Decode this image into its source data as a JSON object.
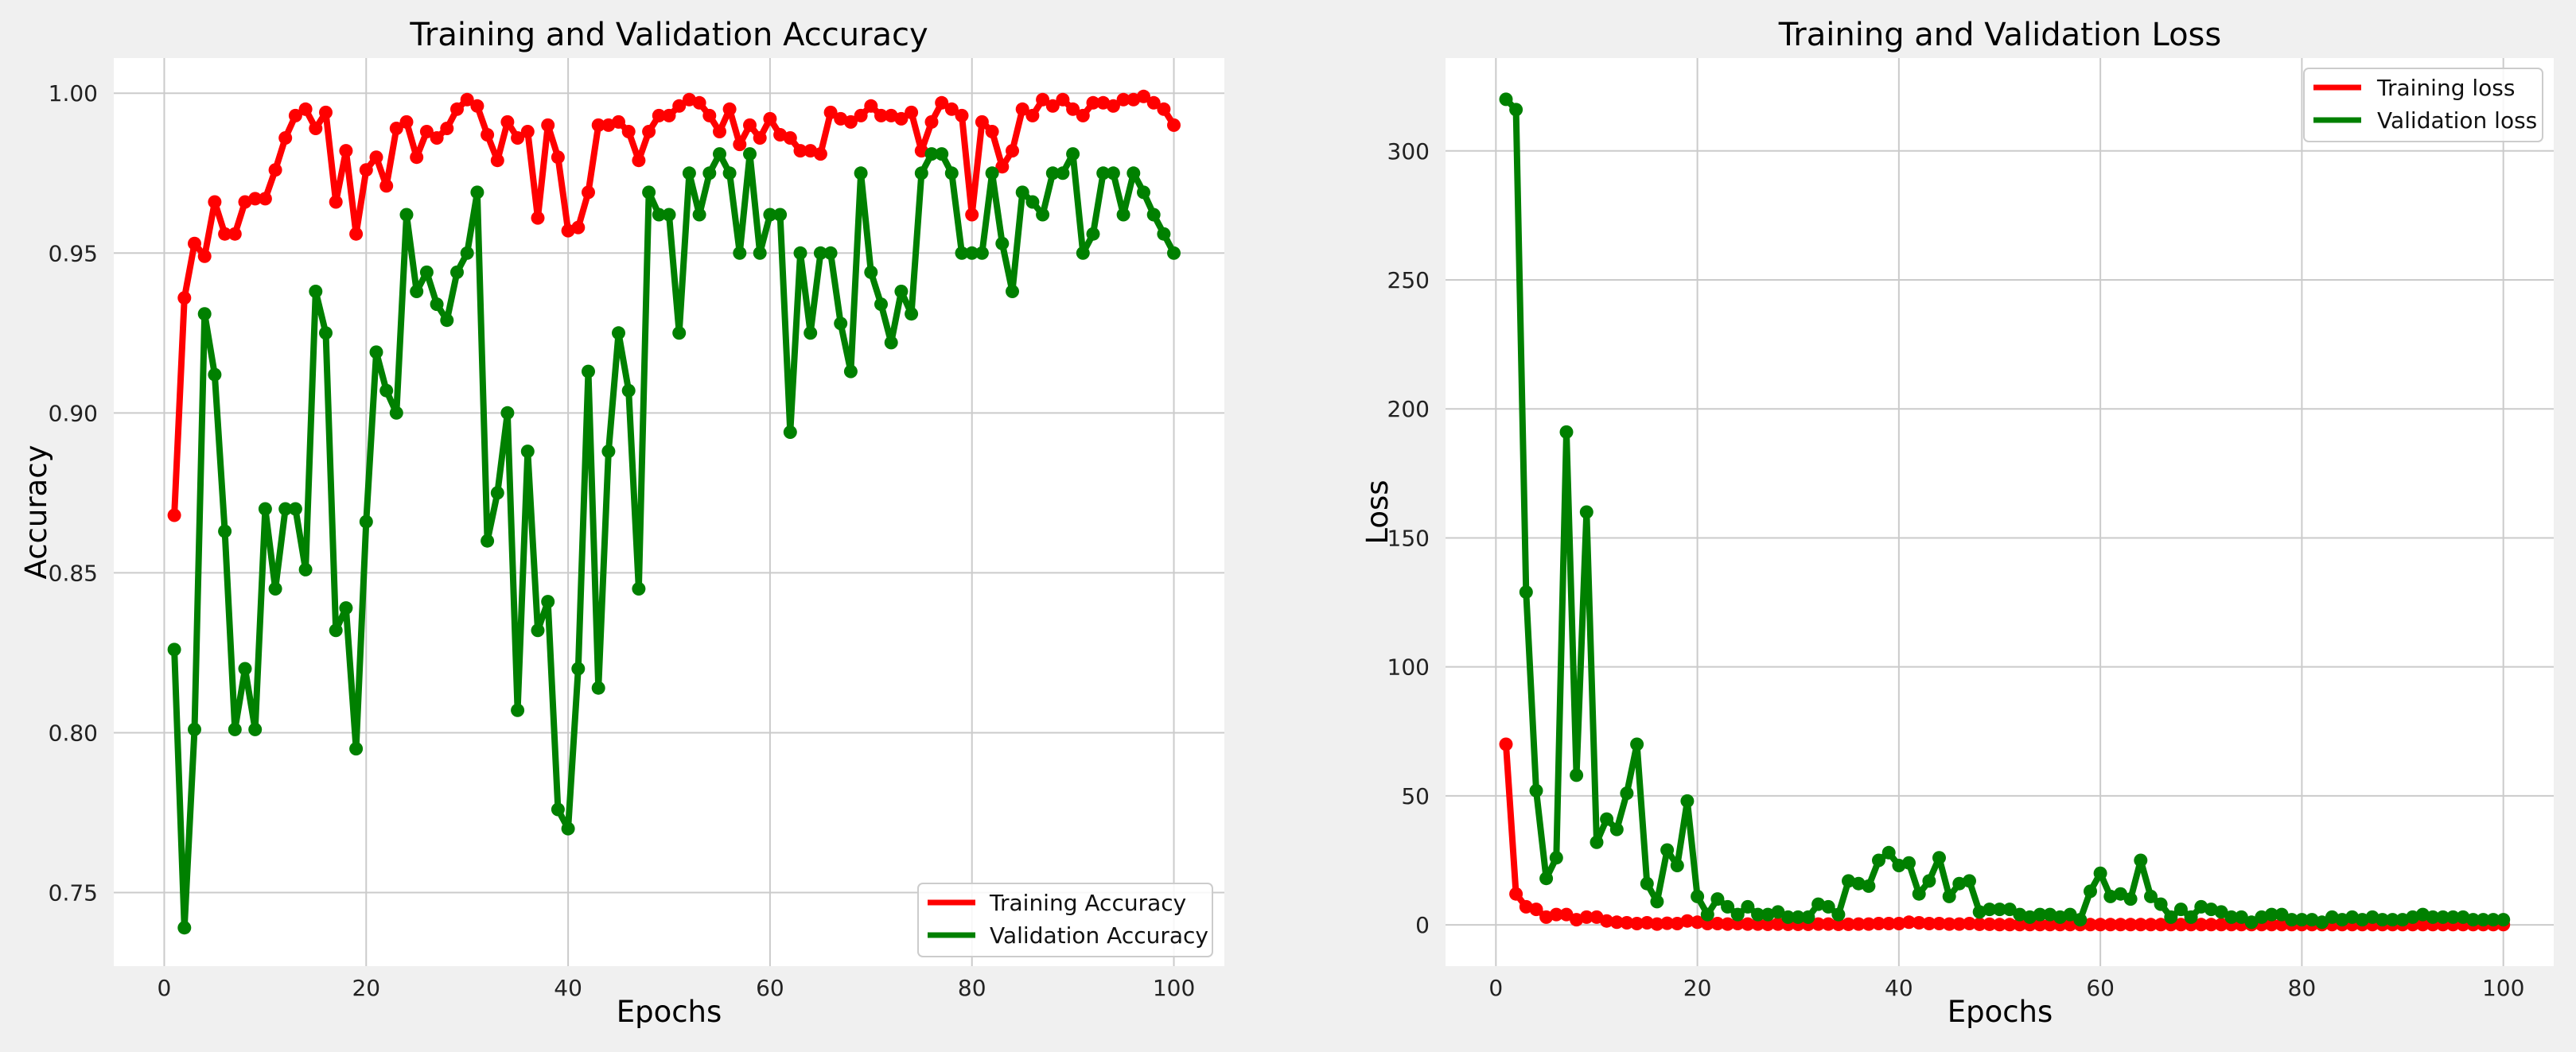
{
  "chart_data": [
    {
      "type": "line",
      "title": "Training and Validation Accuracy",
      "xlabel": "Epochs",
      "ylabel": "Accuracy",
      "xlim": [
        -5,
        105
      ],
      "ylim": [
        0.727,
        1.011
      ],
      "xticks": [
        0,
        20,
        40,
        60,
        80,
        100
      ],
      "yticks": [
        0.75,
        0.8,
        0.85,
        0.9,
        0.95,
        1.0
      ],
      "yticks_labels": [
        "0.75",
        "0.80",
        "0.85",
        "0.90",
        "0.95",
        "1.00"
      ],
      "xticks_labels": [
        "0",
        "20",
        "40",
        "60",
        "80",
        "100"
      ],
      "grid": true,
      "legend_position": "lower-right",
      "x": [
        1,
        2,
        3,
        4,
        5,
        6,
        7,
        8,
        9,
        10,
        11,
        12,
        13,
        14,
        15,
        16,
        17,
        18,
        19,
        20,
        21,
        22,
        23,
        24,
        25,
        26,
        27,
        28,
        29,
        30,
        31,
        32,
        33,
        34,
        35,
        36,
        37,
        38,
        39,
        40,
        41,
        42,
        43,
        44,
        45,
        46,
        47,
        48,
        49,
        50,
        51,
        52,
        53,
        54,
        55,
        56,
        57,
        58,
        59,
        60,
        61,
        62,
        63,
        64,
        65,
        66,
        67,
        68,
        69,
        70,
        71,
        72,
        73,
        74,
        75,
        76,
        77,
        78,
        79,
        80,
        81,
        82,
        83,
        84,
        85,
        86,
        87,
        88,
        89,
        90,
        91,
        92,
        93,
        94,
        95,
        96,
        97,
        98,
        99,
        100
      ],
      "series": [
        {
          "name": "Training Accuracy",
          "color": "#ff0000",
          "values": [
            0.868,
            0.936,
            0.953,
            0.949,
            0.966,
            0.956,
            0.956,
            0.966,
            0.967,
            0.967,
            0.976,
            0.986,
            0.993,
            0.995,
            0.989,
            0.994,
            0.966,
            0.982,
            0.956,
            0.976,
            0.98,
            0.971,
            0.989,
            0.991,
            0.98,
            0.988,
            0.986,
            0.989,
            0.995,
            0.998,
            0.996,
            0.987,
            0.979,
            0.991,
            0.986,
            0.988,
            0.961,
            0.99,
            0.98,
            0.957,
            0.958,
            0.969,
            0.99,
            0.99,
            0.991,
            0.988,
            0.979,
            0.988,
            0.993,
            0.993,
            0.996,
            0.998,
            0.997,
            0.993,
            0.988,
            0.995,
            0.984,
            0.99,
            0.986,
            0.992,
            0.987,
            0.986,
            0.982,
            0.982,
            0.981,
            0.994,
            0.992,
            0.991,
            0.993,
            0.996,
            0.993,
            0.993,
            0.992,
            0.994,
            0.982,
            0.991,
            0.997,
            0.995,
            0.993,
            0.962,
            0.991,
            0.988,
            0.977,
            0.982,
            0.995,
            0.993,
            0.998,
            0.996,
            0.998,
            0.995,
            0.993,
            0.997,
            0.997,
            0.996,
            0.998,
            0.998,
            0.999,
            0.997,
            0.995,
            0.99
          ]
        },
        {
          "name": "Validation Accuracy",
          "color": "#008000",
          "values": [
            0.826,
            0.739,
            0.801,
            0.931,
            0.912,
            0.863,
            0.801,
            0.82,
            0.801,
            0.87,
            0.845,
            0.87,
            0.87,
            0.851,
            0.938,
            0.925,
            0.832,
            0.839,
            0.795,
            0.866,
            0.919,
            0.907,
            0.9,
            0.962,
            0.938,
            0.944,
            0.934,
            0.929,
            0.944,
            0.95,
            0.969,
            0.86,
            0.875,
            0.9,
            0.807,
            0.888,
            0.832,
            0.841,
            0.776,
            0.77,
            0.82,
            0.913,
            0.814,
            0.888,
            0.925,
            0.907,
            0.845,
            0.969,
            0.962,
            0.962,
            0.925,
            0.975,
            0.962,
            0.975,
            0.981,
            0.975,
            0.95,
            0.981,
            0.95,
            0.962,
            0.962,
            0.894,
            0.95,
            0.925,
            0.95,
            0.95,
            0.928,
            0.913,
            0.975,
            0.944,
            0.934,
            0.922,
            0.938,
            0.931,
            0.975,
            0.981,
            0.981,
            0.975,
            0.95,
            0.95,
            0.95,
            0.975,
            0.953,
            0.938,
            0.969,
            0.966,
            0.962,
            0.975,
            0.975,
            0.981,
            0.95,
            0.956,
            0.975,
            0.975,
            0.962,
            0.975,
            0.969,
            0.962,
            0.956,
            0.95
          ]
        }
      ]
    },
    {
      "type": "line",
      "title": "Training and Validation Loss",
      "xlabel": "Epochs",
      "ylabel": "Loss",
      "xlim": [
        -5,
        105
      ],
      "ylim": [
        -16,
        336
      ],
      "xticks": [
        0,
        20,
        40,
        60,
        80,
        100
      ],
      "yticks": [
        0,
        50,
        100,
        150,
        200,
        250,
        300
      ],
      "yticks_labels": [
        "0",
        "50",
        "100",
        "150",
        "200",
        "250",
        "300"
      ],
      "xticks_labels": [
        "0",
        "20",
        "40",
        "60",
        "80",
        "100"
      ],
      "grid": true,
      "legend_position": "top-right",
      "x": [
        1,
        2,
        3,
        4,
        5,
        6,
        7,
        8,
        9,
        10,
        11,
        12,
        13,
        14,
        15,
        16,
        17,
        18,
        19,
        20,
        21,
        22,
        23,
        24,
        25,
        26,
        27,
        28,
        29,
        30,
        31,
        32,
        33,
        34,
        35,
        36,
        37,
        38,
        39,
        40,
        41,
        42,
        43,
        44,
        45,
        46,
        47,
        48,
        49,
        50,
        51,
        52,
        53,
        54,
        55,
        56,
        57,
        58,
        59,
        60,
        61,
        62,
        63,
        64,
        65,
        66,
        67,
        68,
        69,
        70,
        71,
        72,
        73,
        74,
        75,
        76,
        77,
        78,
        79,
        80,
        81,
        82,
        83,
        84,
        85,
        86,
        87,
        88,
        89,
        90,
        91,
        92,
        93,
        94,
        95,
        96,
        97,
        98,
        99,
        100
      ],
      "series": [
        {
          "name": "Training loss",
          "color": "#ff0000",
          "values": [
            70,
            12,
            7,
            6,
            3,
            4,
            4,
            2,
            3,
            3,
            1.5,
            1,
            0.8,
            0.5,
            0.8,
            0.3,
            0.6,
            0.5,
            1.5,
            1,
            0.5,
            0.5,
            0.3,
            0.5,
            0.3,
            0.3,
            0.2,
            0.3,
            0.2,
            0.2,
            0.2,
            0.3,
            0.3,
            0.2,
            0.2,
            0.3,
            0.3,
            0.5,
            0.5,
            0.5,
            1,
            0.8,
            0.5,
            0.5,
            0.3,
            0.3,
            0.5,
            0.2,
            0.2,
            0.1,
            0.1,
            0.1,
            0.1,
            0.1,
            0.1,
            0.1,
            0.1,
            0.1,
            0.1,
            0.1,
            0.1,
            0.1,
            0.1,
            0.1,
            0.1,
            0.1,
            0.1,
            0.1,
            0.1,
            0.1,
            0.1,
            0.1,
            0.1,
            0.1,
            0.1,
            0.1,
            0.1,
            0.1,
            0.1,
            0.1,
            0.1,
            0.1,
            0.1,
            0.1,
            0.1,
            0.1,
            0.1,
            0.1,
            0.1,
            0.1,
            0.1,
            0.1,
            0.1,
            0.1,
            0.1,
            0.1,
            0.1,
            0.1,
            0.1,
            0.1
          ]
        },
        {
          "name": "Validation loss",
          "color": "#008000",
          "values": [
            320,
            316,
            129,
            52,
            18,
            26,
            191,
            58,
            160,
            32,
            41,
            37,
            51,
            70,
            16,
            9,
            29,
            23,
            48,
            11,
            4,
            10,
            7,
            4,
            7,
            4,
            4,
            5,
            3,
            3,
            3,
            8,
            7,
            4,
            17,
            16,
            15,
            25,
            28,
            23,
            24,
            12,
            17,
            26,
            11,
            16,
            17,
            5,
            6,
            6,
            6,
            4,
            3,
            4,
            4,
            3,
            4,
            2,
            13,
            20,
            11,
            12,
            10,
            25,
            11,
            8,
            3,
            6,
            3,
            7,
            6,
            5,
            3,
            3,
            1,
            3,
            4,
            4,
            2,
            2,
            2,
            1,
            3,
            2,
            3,
            2,
            3,
            2,
            2,
            2,
            3,
            4,
            3,
            3,
            3,
            3,
            2,
            2,
            2,
            2
          ]
        }
      ]
    }
  ]
}
